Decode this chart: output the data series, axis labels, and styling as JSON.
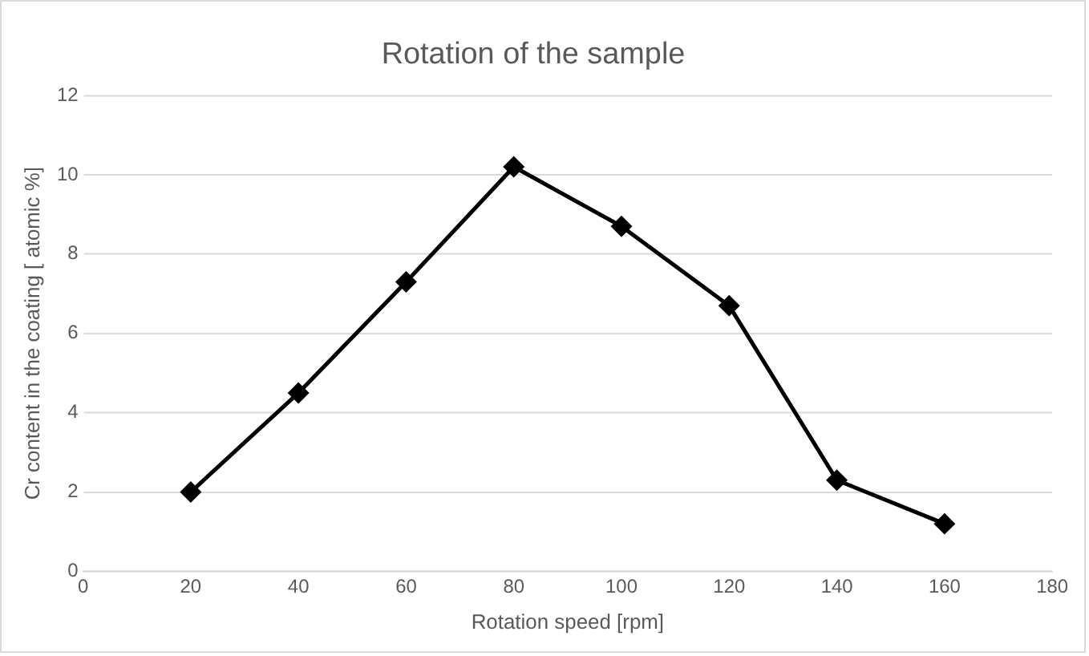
{
  "chart_data": {
    "type": "line",
    "title": "Rotation of the sample",
    "xlabel": "Rotation speed [rpm]",
    "ylabel": "Cr content in the coating [ atomic %]",
    "x": [
      20,
      40,
      60,
      80,
      100,
      120,
      140,
      160
    ],
    "series": [
      {
        "color": "#000000",
        "values": [
          2.0,
          4.5,
          7.3,
          10.2,
          8.7,
          6.7,
          2.3,
          1.2
        ]
      }
    ],
    "xlim": [
      0,
      180
    ],
    "xticks": [
      0,
      20,
      40,
      60,
      80,
      100,
      120,
      140,
      160,
      180
    ],
    "ylim": [
      0,
      12
    ],
    "yticks": [
      0,
      2,
      4,
      6,
      8,
      10,
      12
    ],
    "grid": "y",
    "legend": false,
    "marker": "diamond",
    "line_style": "solid"
  }
}
